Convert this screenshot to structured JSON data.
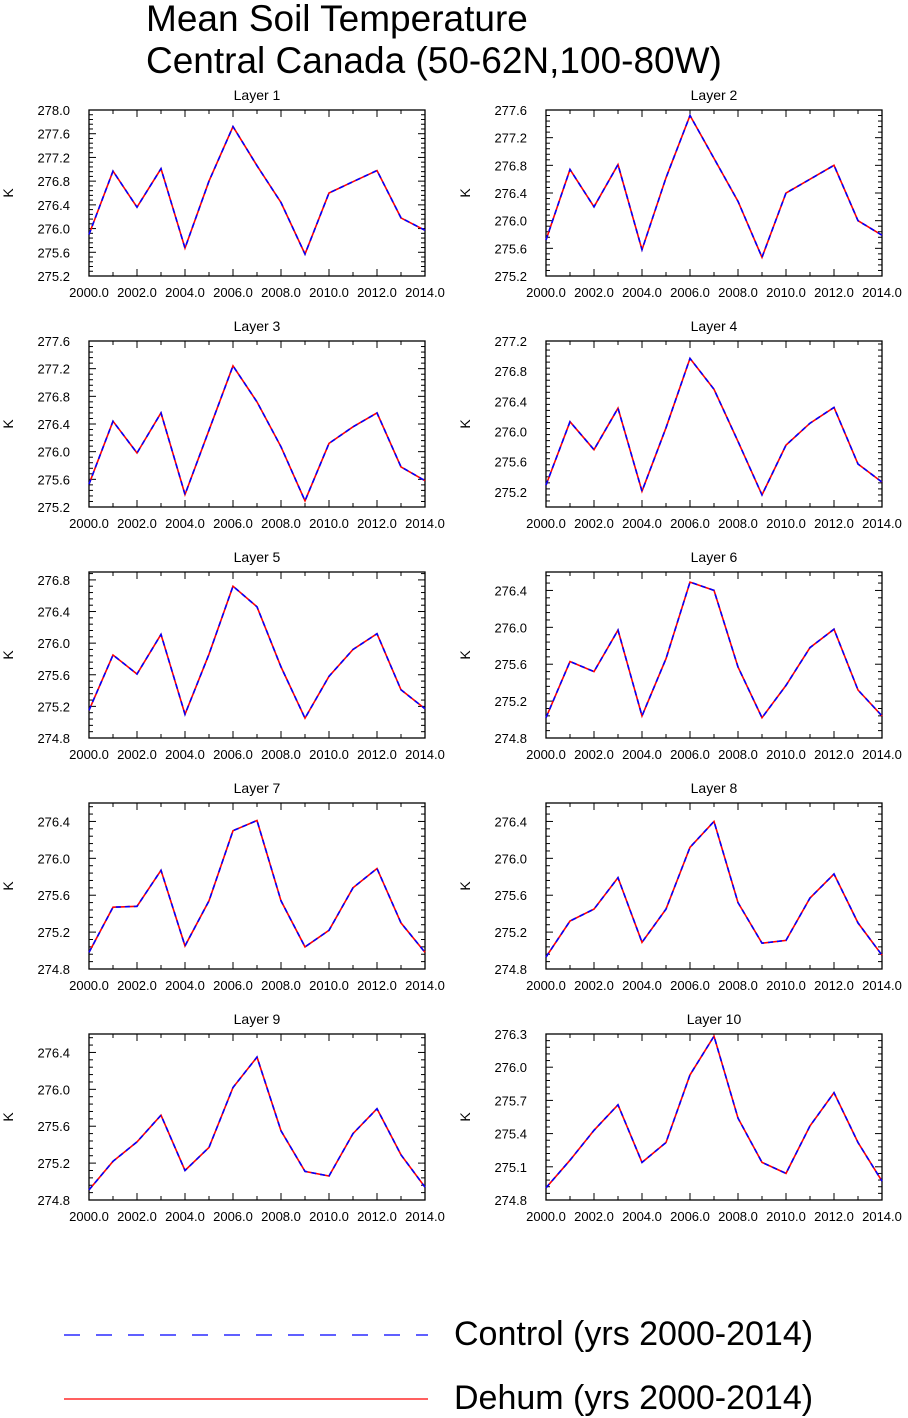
{
  "figure": {
    "title_line1": "Mean Soil Temperature",
    "title_line2": "Central Canada (50-62N,100-80W)"
  },
  "colors": {
    "control": "#0000ff",
    "dehum": "#ff0000"
  },
  "legend": {
    "control_label": "Control (yrs 2000-2014)",
    "dehum_label": "Dehum (yrs 2000-2014)"
  },
  "chart_data": [
    {
      "type": "line",
      "title": "Layer 1",
      "xlabel": "",
      "ylabel": "K",
      "x": [
        2000,
        2001,
        2002,
        2003,
        2004,
        2005,
        2006,
        2007,
        2008,
        2009,
        2010,
        2011,
        2012,
        2013,
        2014
      ],
      "xticks": [
        "2000.0",
        "2002.0",
        "2004.0",
        "2006.0",
        "2008.0",
        "2010.0",
        "2012.0",
        "2014.0"
      ],
      "ylim": [
        275.2,
        278.0
      ],
      "yticks": [
        "275.2",
        "275.6",
        "276.0",
        "276.4",
        "276.8",
        "277.2",
        "277.6",
        "278.0"
      ],
      "series": [
        {
          "name": "Control (yrs 2000-2014)",
          "values": [
            275.9,
            276.97,
            276.36,
            277.01,
            275.67,
            276.8,
            277.72,
            277.06,
            276.44,
            275.57,
            276.6,
            276.79,
            276.98,
            276.18,
            275.97
          ]
        },
        {
          "name": "Dehum (yrs 2000-2014)",
          "values": [
            275.9,
            276.97,
            276.36,
            277.01,
            275.67,
            276.8,
            277.72,
            277.06,
            276.44,
            275.57,
            276.6,
            276.79,
            276.98,
            276.18,
            275.97
          ]
        }
      ]
    },
    {
      "type": "line",
      "title": "Layer 2",
      "xlabel": "",
      "ylabel": "K",
      "x": [
        2000,
        2001,
        2002,
        2003,
        2004,
        2005,
        2006,
        2007,
        2008,
        2009,
        2010,
        2011,
        2012,
        2013,
        2014
      ],
      "xticks": [
        "2000.0",
        "2002.0",
        "2004.0",
        "2006.0",
        "2008.0",
        "2010.0",
        "2012.0",
        "2014.0"
      ],
      "ylim": [
        275.2,
        277.6
      ],
      "yticks": [
        "275.2",
        "275.6",
        "276.0",
        "276.4",
        "276.8",
        "277.2",
        "277.6"
      ],
      "series": [
        {
          "name": "Control (yrs 2000-2014)",
          "values": [
            275.72,
            276.74,
            276.2,
            276.81,
            275.58,
            276.62,
            277.52,
            276.9,
            276.28,
            275.47,
            276.4,
            276.6,
            276.8,
            276.0,
            275.79
          ]
        },
        {
          "name": "Dehum (yrs 2000-2014)",
          "values": [
            275.72,
            276.74,
            276.2,
            276.81,
            275.58,
            276.62,
            277.52,
            276.9,
            276.28,
            275.47,
            276.4,
            276.6,
            276.8,
            276.0,
            275.79
          ]
        }
      ]
    },
    {
      "type": "line",
      "title": "Layer 3",
      "xlabel": "",
      "ylabel": "K",
      "x": [
        2000,
        2001,
        2002,
        2003,
        2004,
        2005,
        2006,
        2007,
        2008,
        2009,
        2010,
        2011,
        2012,
        2013,
        2014
      ],
      "xticks": [
        "2000.0",
        "2002.0",
        "2004.0",
        "2006.0",
        "2008.0",
        "2010.0",
        "2012.0",
        "2014.0"
      ],
      "ylim": [
        275.2,
        277.6
      ],
      "yticks": [
        "275.2",
        "275.6",
        "276.0",
        "276.4",
        "276.8",
        "277.2",
        "277.6"
      ],
      "series": [
        {
          "name": "Control (yrs 2000-2014)",
          "values": [
            275.53,
            276.44,
            275.98,
            276.56,
            275.38,
            276.31,
            277.24,
            276.72,
            276.07,
            275.29,
            276.12,
            276.36,
            276.56,
            275.78,
            275.58
          ]
        },
        {
          "name": "Dehum (yrs 2000-2014)",
          "values": [
            275.53,
            276.44,
            275.98,
            276.56,
            275.38,
            276.31,
            277.24,
            276.72,
            276.07,
            275.29,
            276.12,
            276.36,
            276.56,
            275.78,
            275.58
          ]
        }
      ]
    },
    {
      "type": "line",
      "title": "Layer 4",
      "xlabel": "",
      "ylabel": "K",
      "x": [
        2000,
        2001,
        2002,
        2003,
        2004,
        2005,
        2006,
        2007,
        2008,
        2009,
        2010,
        2011,
        2012,
        2013,
        2014
      ],
      "xticks": [
        "2000.0",
        "2002.0",
        "2004.0",
        "2006.0",
        "2008.0",
        "2010.0",
        "2012.0",
        "2014.0"
      ],
      "ylim": [
        275.0,
        277.2
      ],
      "yticks": [
        "275.2",
        "275.6",
        "276.0",
        "276.4",
        "276.8",
        "277.2"
      ],
      "series": [
        {
          "name": "Control (yrs 2000-2014)",
          "values": [
            275.29,
            276.13,
            275.76,
            276.31,
            275.21,
            276.05,
            276.97,
            276.56,
            275.87,
            275.16,
            275.82,
            276.11,
            276.32,
            275.57,
            275.33
          ]
        },
        {
          "name": "Dehum (yrs 2000-2014)",
          "values": [
            275.29,
            276.13,
            275.76,
            276.31,
            275.21,
            276.05,
            276.97,
            276.56,
            275.87,
            275.16,
            275.82,
            276.11,
            276.32,
            275.57,
            275.33
          ]
        }
      ]
    },
    {
      "type": "line",
      "title": "Layer 5",
      "xlabel": "",
      "ylabel": "K",
      "x": [
        2000,
        2001,
        2002,
        2003,
        2004,
        2005,
        2006,
        2007,
        2008,
        2009,
        2010,
        2011,
        2012,
        2013,
        2014
      ],
      "xticks": [
        "2000.0",
        "2002.0",
        "2004.0",
        "2006.0",
        "2008.0",
        "2010.0",
        "2012.0",
        "2014.0"
      ],
      "ylim": [
        274.8,
        276.9
      ],
      "yticks": [
        "274.8",
        "275.2",
        "275.6",
        "276.0",
        "276.4",
        "276.8"
      ],
      "series": [
        {
          "name": "Control (yrs 2000-2014)",
          "values": [
            275.15,
            275.85,
            275.61,
            276.11,
            275.1,
            275.86,
            276.72,
            276.46,
            275.7,
            275.05,
            275.58,
            275.92,
            276.12,
            275.41,
            275.17
          ]
        },
        {
          "name": "Dehum (yrs 2000-2014)",
          "values": [
            275.15,
            275.85,
            275.61,
            276.11,
            275.1,
            275.86,
            276.72,
            276.46,
            275.7,
            275.05,
            275.58,
            275.92,
            276.12,
            275.41,
            275.17
          ]
        }
      ]
    },
    {
      "type": "line",
      "title": "Layer 6",
      "xlabel": "",
      "ylabel": "K",
      "x": [
        2000,
        2001,
        2002,
        2003,
        2004,
        2005,
        2006,
        2007,
        2008,
        2009,
        2010,
        2011,
        2012,
        2013,
        2014
      ],
      "xticks": [
        "2000.0",
        "2002.0",
        "2004.0",
        "2006.0",
        "2008.0",
        "2010.0",
        "2012.0",
        "2014.0"
      ],
      "ylim": [
        274.8,
        276.6
      ],
      "yticks": [
        "274.8",
        "275.2",
        "275.6",
        "276.0",
        "276.4"
      ],
      "series": [
        {
          "name": "Control (yrs 2000-2014)",
          "values": [
            275.02,
            275.63,
            275.52,
            275.97,
            275.04,
            275.66,
            276.49,
            276.4,
            275.57,
            275.02,
            275.37,
            275.78,
            275.98,
            275.32,
            275.04
          ]
        },
        {
          "name": "Dehum (yrs 2000-2014)",
          "values": [
            275.02,
            275.63,
            275.52,
            275.97,
            275.04,
            275.66,
            276.49,
            276.4,
            275.57,
            275.02,
            275.37,
            275.78,
            275.98,
            275.32,
            275.04
          ]
        }
      ]
    },
    {
      "type": "line",
      "title": "Layer 7",
      "xlabel": "",
      "ylabel": "K",
      "x": [
        2000,
        2001,
        2002,
        2003,
        2004,
        2005,
        2006,
        2007,
        2008,
        2009,
        2010,
        2011,
        2012,
        2013,
        2014
      ],
      "xticks": [
        "2000.0",
        "2002.0",
        "2004.0",
        "2006.0",
        "2008.0",
        "2010.0",
        "2012.0",
        "2014.0"
      ],
      "ylim": [
        274.8,
        276.6
      ],
      "yticks": [
        "274.8",
        "275.2",
        "275.6",
        "276.0",
        "276.4"
      ],
      "series": [
        {
          "name": "Control (yrs 2000-2014)",
          "values": [
            274.98,
            275.47,
            275.48,
            275.87,
            275.05,
            275.54,
            276.3,
            276.41,
            275.54,
            275.04,
            275.22,
            275.68,
            275.89,
            275.3,
            274.98
          ]
        },
        {
          "name": "Dehum (yrs 2000-2014)",
          "values": [
            274.98,
            275.47,
            275.48,
            275.87,
            275.05,
            275.54,
            276.3,
            276.41,
            275.54,
            275.04,
            275.22,
            275.68,
            275.89,
            275.3,
            274.98
          ]
        }
      ]
    },
    {
      "type": "line",
      "title": "Layer 8",
      "xlabel": "",
      "ylabel": "K",
      "x": [
        2000,
        2001,
        2002,
        2003,
        2004,
        2005,
        2006,
        2007,
        2008,
        2009,
        2010,
        2011,
        2012,
        2013,
        2014
      ],
      "xticks": [
        "2000.0",
        "2002.0",
        "2004.0",
        "2006.0",
        "2008.0",
        "2010.0",
        "2012.0",
        "2014.0"
      ],
      "ylim": [
        274.8,
        276.6
      ],
      "yticks": [
        "274.8",
        "275.2",
        "275.6",
        "276.0",
        "276.4"
      ],
      "series": [
        {
          "name": "Control (yrs 2000-2014)",
          "values": [
            274.93,
            275.32,
            275.45,
            275.79,
            275.09,
            275.45,
            276.12,
            276.4,
            275.52,
            275.08,
            275.11,
            275.57,
            275.83,
            275.3,
            274.95
          ]
        },
        {
          "name": "Dehum (yrs 2000-2014)",
          "values": [
            274.93,
            275.32,
            275.45,
            275.79,
            275.09,
            275.45,
            276.12,
            276.4,
            275.52,
            275.08,
            275.11,
            275.57,
            275.83,
            275.3,
            274.95
          ]
        }
      ]
    },
    {
      "type": "line",
      "title": "Layer 9",
      "xlabel": "",
      "ylabel": "K",
      "x": [
        2000,
        2001,
        2002,
        2003,
        2004,
        2005,
        2006,
        2007,
        2008,
        2009,
        2010,
        2011,
        2012,
        2013,
        2014
      ],
      "xticks": [
        "2000.0",
        "2002.0",
        "2004.0",
        "2006.0",
        "2008.0",
        "2010.0",
        "2012.0",
        "2014.0"
      ],
      "ylim": [
        274.8,
        276.6
      ],
      "yticks": [
        "274.8",
        "275.2",
        "275.6",
        "276.0",
        "276.4"
      ],
      "series": [
        {
          "name": "Control (yrs 2000-2014)",
          "values": [
            274.91,
            275.22,
            275.43,
            275.72,
            275.12,
            275.37,
            276.02,
            276.35,
            275.55,
            275.11,
            275.06,
            275.52,
            275.79,
            275.29,
            274.94
          ]
        },
        {
          "name": "Dehum (yrs 2000-2014)",
          "values": [
            274.91,
            275.22,
            275.43,
            275.72,
            275.12,
            275.37,
            276.02,
            276.35,
            275.55,
            275.11,
            275.06,
            275.52,
            275.79,
            275.29,
            274.94
          ]
        }
      ]
    },
    {
      "type": "line",
      "title": "Layer 10",
      "xlabel": "",
      "ylabel": "K",
      "x": [
        2000,
        2001,
        2002,
        2003,
        2004,
        2005,
        2006,
        2007,
        2008,
        2009,
        2010,
        2011,
        2012,
        2013,
        2014
      ],
      "xticks": [
        "2000.0",
        "2002.0",
        "2004.0",
        "2006.0",
        "2008.0",
        "2010.0",
        "2012.0",
        "2014.0"
      ],
      "ylim": [
        274.8,
        276.3
      ],
      "yticks": [
        "274.8",
        "275.1",
        "275.4",
        "275.7",
        "276.0",
        "276.3"
      ],
      "series": [
        {
          "name": "Control (yrs 2000-2014)",
          "values": [
            274.91,
            275.16,
            275.43,
            275.66,
            275.14,
            275.32,
            275.93,
            276.28,
            275.54,
            275.14,
            275.04,
            275.47,
            275.77,
            275.32,
            274.97
          ]
        },
        {
          "name": "Dehum (yrs 2000-2014)",
          "values": [
            274.91,
            275.16,
            275.43,
            275.66,
            275.14,
            275.32,
            275.93,
            276.28,
            275.54,
            275.14,
            275.04,
            275.47,
            275.77,
            275.32,
            274.97
          ]
        }
      ]
    }
  ]
}
